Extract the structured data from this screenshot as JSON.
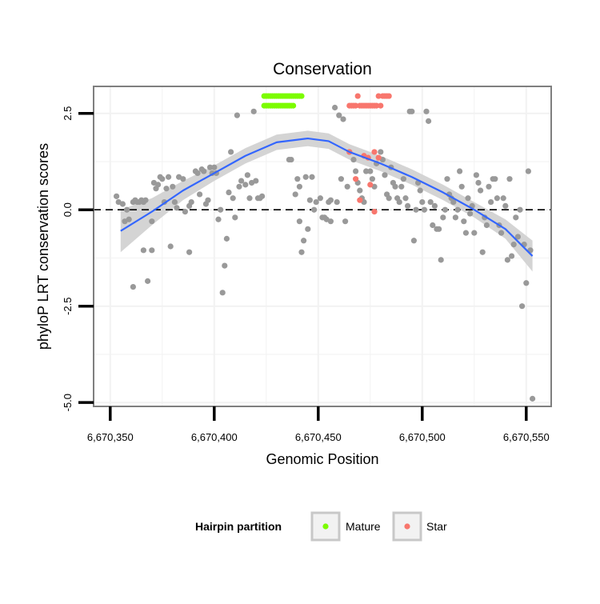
{
  "chart_data": {
    "type": "scatter",
    "title": "Conservation",
    "xlabel": "Genomic Position",
    "ylabel": "phyloP LRT conservation scores",
    "xlim": [
      6670342,
      6670562
    ],
    "ylim": [
      -5.1,
      3.2
    ],
    "x_ticks": [
      6670350,
      6670400,
      6670450,
      6670500,
      6670550
    ],
    "x_tick_labels": [
      "6,670,350",
      "6,670,400",
      "6,670,450",
      "6,670,500",
      "6,670,550"
    ],
    "y_ticks": [
      2.5,
      0.0,
      -2.5,
      -5.0
    ],
    "y_tick_labels": [
      "2.5",
      "0.0",
      "-2.5",
      "-5.0"
    ],
    "reference_line_y": 0,
    "legend": {
      "title": "Hairpin partition",
      "position": "bottom",
      "entries": [
        {
          "label": "Mature",
          "color": "#7cfc00"
        },
        {
          "label": "Star",
          "color": "#f8766d"
        }
      ]
    },
    "colors": {
      "other": "#999999",
      "smooth_line": "#3366ff",
      "ribbon": "#cfcfcf",
      "panel_border": "#7f7f7f",
      "grid": "#f2f2f2"
    },
    "series": [
      {
        "name": "Other",
        "points": [
          [
            6670353,
            0.35
          ],
          [
            6670354,
            0.2
          ],
          [
            6670356,
            0.15
          ],
          [
            6670357,
            -0.3
          ],
          [
            6670358,
            0.0
          ],
          [
            6670359,
            -0.25
          ],
          [
            6670361,
            -2.0
          ],
          [
            6670361,
            0.2
          ],
          [
            6670362,
            0.25
          ],
          [
            6670363,
            0.2
          ],
          [
            6670364,
            0.2
          ],
          [
            6670365,
            0.25
          ],
          [
            6670366,
            -1.05
          ],
          [
            6670366,
            0.2
          ],
          [
            6670367,
            0.25
          ],
          [
            6670368,
            -1.85
          ],
          [
            6670370,
            -0.3
          ],
          [
            6670370,
            -1.05
          ],
          [
            6670371,
            0.7
          ],
          [
            6670372,
            0.55
          ],
          [
            6670373,
            0.65
          ],
          [
            6670374,
            0.85
          ],
          [
            6670375,
            0.8
          ],
          [
            6670376,
            0.2
          ],
          [
            6670377,
            0.55
          ],
          [
            6670378,
            0.85
          ],
          [
            6670379,
            -0.95
          ],
          [
            6670380,
            0.6
          ],
          [
            6670381,
            0.2
          ],
          [
            6670382,
            0.05
          ],
          [
            6670383,
            0.85
          ],
          [
            6670385,
            0.8
          ],
          [
            6670386,
            -0.05
          ],
          [
            6670388,
            -1.1
          ],
          [
            6670388,
            0.1
          ],
          [
            6670389,
            0.2
          ],
          [
            6670391,
            1.0
          ],
          [
            6670392,
            0.95
          ],
          [
            6670393,
            0.4
          ],
          [
            6670394,
            1.05
          ],
          [
            6670395,
            1.0
          ],
          [
            6670396,
            0.15
          ],
          [
            6670397,
            0.25
          ],
          [
            6670398,
            1.1
          ],
          [
            6670399,
            0.95
          ],
          [
            6670400,
            1.1
          ],
          [
            6670401,
            0.95
          ],
          [
            6670402,
            -0.25
          ],
          [
            6670403,
            0.0
          ],
          [
            6670404,
            -2.15
          ],
          [
            6670405,
            -1.45
          ],
          [
            6670406,
            -0.75
          ],
          [
            6670407,
            0.45
          ],
          [
            6670408,
            1.5
          ],
          [
            6670409,
            0.3
          ],
          [
            6670410,
            -0.2
          ],
          [
            6670411,
            2.45
          ],
          [
            6670412,
            0.6
          ],
          [
            6670413,
            0.75
          ],
          [
            6670415,
            0.65
          ],
          [
            6670416,
            0.9
          ],
          [
            6670417,
            0.3
          ],
          [
            6670418,
            0.7
          ],
          [
            6670419,
            2.55
          ],
          [
            6670420,
            0.75
          ],
          [
            6670421,
            0.3
          ],
          [
            6670422,
            0.3
          ],
          [
            6670423,
            0.35
          ],
          [
            6670436,
            1.3
          ],
          [
            6670437,
            1.3
          ],
          [
            6670439,
            0.4
          ],
          [
            6670440,
            0.8
          ],
          [
            6670441,
            -0.3
          ],
          [
            6670441,
            0.6
          ],
          [
            6670442,
            -1.1
          ],
          [
            6670443,
            -0.8
          ],
          [
            6670444,
            0.85
          ],
          [
            6670445,
            -0.5
          ],
          [
            6670446,
            0.25
          ],
          [
            6670447,
            0.85
          ],
          [
            6670448,
            0.0
          ],
          [
            6670449,
            0.2
          ],
          [
            6670451,
            0.3
          ],
          [
            6670452,
            -0.2
          ],
          [
            6670453,
            -0.2
          ],
          [
            6670454,
            -0.25
          ],
          [
            6670455,
            0.2
          ],
          [
            6670456,
            0.25
          ],
          [
            6670456,
            -0.3
          ],
          [
            6670458,
            2.65
          ],
          [
            6670459,
            0.2
          ],
          [
            6670460,
            2.45
          ],
          [
            6670461,
            0.8
          ],
          [
            6670462,
            2.35
          ],
          [
            6670463,
            -0.3
          ],
          [
            6670464,
            0.6
          ],
          [
            6670465,
            1.5
          ],
          [
            6670467,
            1.3
          ],
          [
            6670468,
            1.0
          ],
          [
            6670469,
            0.7
          ],
          [
            6670470,
            0.5
          ],
          [
            6670471,
            0.3
          ],
          [
            6670472,
            0.2
          ],
          [
            6670473,
            1.0
          ],
          [
            6670475,
            1.0
          ],
          [
            6670476,
            0.8
          ],
          [
            6670477,
            0.6
          ],
          [
            6670478,
            1.2
          ],
          [
            6670480,
            1.5
          ],
          [
            6670481,
            1.3
          ],
          [
            6670482,
            0.9
          ],
          [
            6670483,
            0.4
          ],
          [
            6670484,
            0.3
          ],
          [
            6670485,
            1.1
          ],
          [
            6670486,
            0.7
          ],
          [
            6670487,
            0.6
          ],
          [
            6670488,
            0.3
          ],
          [
            6670489,
            0.2
          ],
          [
            6670490,
            0.6
          ],
          [
            6670491,
            0.8
          ],
          [
            6670492,
            0.3
          ],
          [
            6670493,
            0.1
          ],
          [
            6670494,
            2.55
          ],
          [
            6670495,
            2.55
          ],
          [
            6670496,
            -0.8
          ],
          [
            6670497,
            0.0
          ],
          [
            6670498,
            0.7
          ],
          [
            6670499,
            0.5
          ],
          [
            6670500,
            0.2
          ],
          [
            6670501,
            0.0
          ],
          [
            6670502,
            2.55
          ],
          [
            6670503,
            2.3
          ],
          [
            6670504,
            0.2
          ],
          [
            6670505,
            -0.4
          ],
          [
            6670506,
            0.1
          ],
          [
            6670507,
            -0.5
          ],
          [
            6670508,
            -0.5
          ],
          [
            6670509,
            -1.3
          ],
          [
            6670510,
            -0.2
          ],
          [
            6670511,
            0.0
          ],
          [
            6670512,
            0.8
          ],
          [
            6670513,
            0.4
          ],
          [
            6670514,
            0.3
          ],
          [
            6670515,
            0.2
          ],
          [
            6670516,
            -0.2
          ],
          [
            6670517,
            0.0
          ],
          [
            6670518,
            1.0
          ],
          [
            6670519,
            0.6
          ],
          [
            6670520,
            -0.3
          ],
          [
            6670521,
            -0.6
          ],
          [
            6670522,
            0.3
          ],
          [
            6670523,
            -0.1
          ],
          [
            6670524,
            0.1
          ],
          [
            6670525,
            -0.6
          ],
          [
            6670526,
            0.9
          ],
          [
            6670527,
            0.7
          ],
          [
            6670528,
            0.5
          ],
          [
            6670529,
            -1.1
          ],
          [
            6670530,
            -0.2
          ],
          [
            6670531,
            -0.4
          ],
          [
            6670532,
            0.6
          ],
          [
            6670533,
            0.2
          ],
          [
            6670534,
            0.8
          ],
          [
            6670535,
            0.8
          ],
          [
            6670536,
            0.3
          ],
          [
            6670537,
            -0.4
          ],
          [
            6670538,
            -0.6
          ],
          [
            6670539,
            0.3
          ],
          [
            6670540,
            0.1
          ],
          [
            6670541,
            -1.3
          ],
          [
            6670542,
            0.8
          ],
          [
            6670543,
            -1.2
          ],
          [
            6670544,
            -0.9
          ],
          [
            6670545,
            -0.2
          ],
          [
            6670546,
            -0.7
          ],
          [
            6670547,
            0.0
          ],
          [
            6670548,
            -2.5
          ],
          [
            6670549,
            -0.9
          ],
          [
            6670550,
            -1.9
          ],
          [
            6670551,
            1.0
          ],
          [
            6670552,
            -1.05
          ],
          [
            6670553,
            -4.9
          ]
        ]
      },
      {
        "name": "Mature",
        "points": [
          [
            6670424,
            2.7
          ],
          [
            6670425,
            2.7
          ],
          [
            6670426,
            2.7
          ],
          [
            6670427,
            2.7
          ],
          [
            6670428,
            2.7
          ],
          [
            6670429,
            2.7
          ],
          [
            6670430,
            2.7
          ],
          [
            6670431,
            2.7
          ],
          [
            6670432,
            2.7
          ],
          [
            6670433,
            2.7
          ],
          [
            6670434,
            2.7
          ],
          [
            6670435,
            2.7
          ],
          [
            6670436,
            2.7
          ],
          [
            6670437,
            2.7
          ],
          [
            6670438,
            2.7
          ],
          [
            6670424,
            2.95
          ],
          [
            6670425,
            2.95
          ],
          [
            6670426,
            2.95
          ],
          [
            6670427,
            2.95
          ],
          [
            6670428,
            2.95
          ],
          [
            6670429,
            2.95
          ],
          [
            6670430,
            2.95
          ],
          [
            6670431,
            2.95
          ],
          [
            6670432,
            2.95
          ],
          [
            6670433,
            2.95
          ],
          [
            6670434,
            2.95
          ],
          [
            6670435,
            2.95
          ],
          [
            6670436,
            2.95
          ],
          [
            6670437,
            2.95
          ],
          [
            6670438,
            2.95
          ],
          [
            6670439,
            2.95
          ],
          [
            6670440,
            2.95
          ],
          [
            6670441,
            2.95
          ],
          [
            6670442,
            2.95
          ]
        ]
      },
      {
        "name": "Star",
        "points": [
          [
            6670465,
            2.7
          ],
          [
            6670466,
            2.7
          ],
          [
            6670467,
            2.7
          ],
          [
            6670468,
            2.7
          ],
          [
            6670469,
            2.95
          ],
          [
            6670470,
            2.7
          ],
          [
            6670471,
            2.7
          ],
          [
            6670472,
            2.7
          ],
          [
            6670473,
            2.7
          ],
          [
            6670474,
            2.7
          ],
          [
            6670475,
            2.7
          ],
          [
            6670476,
            2.7
          ],
          [
            6670477,
            2.7
          ],
          [
            6670478,
            2.7
          ],
          [
            6670479,
            2.95
          ],
          [
            6670480,
            2.7
          ],
          [
            6670481,
            2.95
          ],
          [
            6670482,
            2.95
          ],
          [
            6670483,
            2.95
          ],
          [
            6670484,
            2.95
          ],
          [
            6670465,
            1.5
          ],
          [
            6670468,
            0.8
          ],
          [
            6670470,
            0.25
          ],
          [
            6670472,
            1.4
          ],
          [
            6670474,
            1.35
          ],
          [
            6670475,
            0.65
          ],
          [
            6670477,
            1.5
          ],
          [
            6670477,
            -0.05
          ],
          [
            6670479,
            1.35
          ]
        ]
      }
    ],
    "smooth_line": [
      [
        6670355,
        -0.55
      ],
      [
        6670370,
        -0.05
      ],
      [
        6670385,
        0.5
      ],
      [
        6670400,
        0.95
      ],
      [
        6670415,
        1.4
      ],
      [
        6670430,
        1.75
      ],
      [
        6670445,
        1.85
      ],
      [
        6670455,
        1.78
      ],
      [
        6670465,
        1.5
      ],
      [
        6670480,
        1.2
      ],
      [
        6670495,
        0.85
      ],
      [
        6670510,
        0.45
      ],
      [
        6670525,
        0.0
      ],
      [
        6670540,
        -0.5
      ],
      [
        6670553,
        -1.2
      ]
    ],
    "smooth_band": [
      [
        6670355,
        -1.1,
        0.0
      ],
      [
        6670370,
        -0.4,
        0.3
      ],
      [
        6670385,
        0.25,
        0.75
      ],
      [
        6670400,
        0.75,
        1.15
      ],
      [
        6670415,
        1.2,
        1.6
      ],
      [
        6670430,
        1.55,
        1.95
      ],
      [
        6670445,
        1.65,
        2.05
      ],
      [
        6670455,
        1.58,
        1.98
      ],
      [
        6670465,
        1.3,
        1.7
      ],
      [
        6670480,
        1.0,
        1.4
      ],
      [
        6670495,
        0.65,
        1.05
      ],
      [
        6670510,
        0.25,
        0.65
      ],
      [
        6670525,
        -0.2,
        0.2
      ],
      [
        6670540,
        -0.75,
        -0.25
      ],
      [
        6670553,
        -1.6,
        -0.8
      ]
    ]
  }
}
